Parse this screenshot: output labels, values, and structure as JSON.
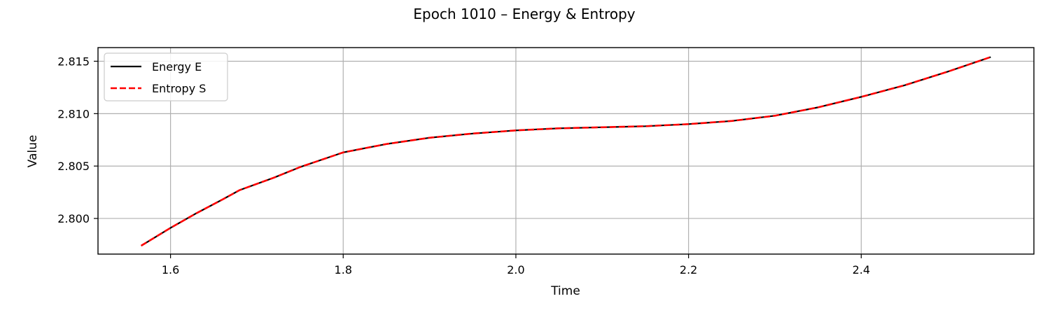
{
  "chart_data": {
    "type": "line",
    "title": "Epoch 1010 – Energy & Entropy",
    "xlabel": "Time",
    "ylabel": "Value",
    "xlim": [
      1.516,
      2.6
    ],
    "ylim": [
      2.7966,
      2.8163
    ],
    "xticks": [
      1.6,
      1.8,
      2.0,
      2.2,
      2.4
    ],
    "yticks": [
      2.8,
      2.805,
      2.81,
      2.815
    ],
    "xtick_labels": [
      "1.6",
      "1.8",
      "2.0",
      "2.2",
      "2.4"
    ],
    "ytick_labels": [
      "2.800",
      "2.805",
      "2.810",
      "2.815"
    ],
    "grid": true,
    "legend": "upper left",
    "series": [
      {
        "name": "Energy E",
        "color": "#000000",
        "style": "solid",
        "x": [
          1.566,
          1.6,
          1.63,
          1.66,
          1.68,
          1.72,
          1.75,
          1.8,
          1.85,
          1.9,
          1.95,
          2.0,
          2.05,
          2.1,
          2.15,
          2.2,
          2.25,
          2.3,
          2.35,
          2.4,
          2.45,
          2.5,
          2.55
        ],
        "y": [
          2.7974,
          2.7991,
          2.8005,
          2.8018,
          2.8027,
          2.8039,
          2.8049,
          2.8063,
          2.8071,
          2.8077,
          2.8081,
          2.8084,
          2.8086,
          2.8087,
          2.8088,
          2.809,
          2.8093,
          2.8098,
          2.8106,
          2.8116,
          2.8127,
          2.814,
          2.8154
        ]
      },
      {
        "name": "Entropy S",
        "color": "#ff0000",
        "style": "dashed",
        "x": [
          1.566,
          1.6,
          1.63,
          1.66,
          1.68,
          1.72,
          1.75,
          1.8,
          1.85,
          1.9,
          1.95,
          2.0,
          2.05,
          2.1,
          2.15,
          2.2,
          2.25,
          2.3,
          2.35,
          2.4,
          2.45,
          2.5,
          2.55
        ],
        "y": [
          2.7974,
          2.7991,
          2.8005,
          2.8018,
          2.8027,
          2.8039,
          2.8049,
          2.8063,
          2.8071,
          2.8077,
          2.8081,
          2.8084,
          2.8086,
          2.8087,
          2.8088,
          2.809,
          2.8093,
          2.8098,
          2.8106,
          2.8116,
          2.8127,
          2.814,
          2.8154
        ]
      }
    ]
  }
}
